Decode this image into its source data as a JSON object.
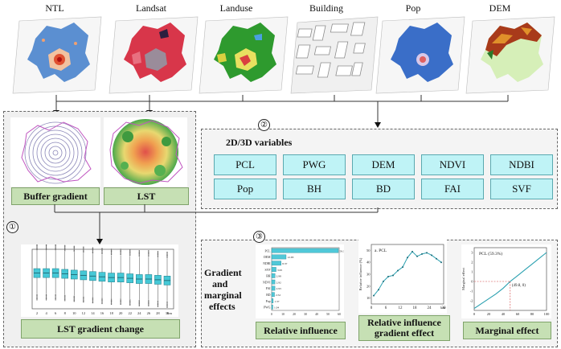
{
  "layers": [
    {
      "label": "NTL"
    },
    {
      "label": "Landsat"
    },
    {
      "label": "Landuse"
    },
    {
      "label": "Building"
    },
    {
      "label": "Pop"
    },
    {
      "label": "DEM"
    }
  ],
  "section1": {
    "number": "①",
    "buffer_label": "Buffer gradient",
    "lst_label": "LST",
    "change_label": "LST gradient change"
  },
  "section2": {
    "number": "②",
    "title": "2D/3D variables",
    "variables": [
      "PCL",
      "PWG",
      "DEM",
      "NDVI",
      "NDBI",
      "Pop",
      "BH",
      "BD",
      "FAI",
      "SVF"
    ]
  },
  "section3": {
    "number": "③",
    "side_label_lines": [
      "Gradient",
      "and",
      "marginal",
      "effects"
    ],
    "relative_influence_label": "Relative influence",
    "gradient_effect_label_lines": [
      "Relative influence",
      "gradient effect"
    ],
    "marginal_effect_label": "Marginal effect"
  },
  "boxplot_chart": {
    "type": "box",
    "x": [
      2,
      4,
      6,
      8,
      10,
      12,
      14,
      16,
      18,
      20,
      22,
      24,
      26,
      28,
      30
    ],
    "medians": [
      44,
      44,
      44,
      43.5,
      43,
      42.5,
      42,
      41.5,
      41,
      41,
      40.5,
      40,
      40,
      39.5,
      39
    ],
    "xlabel": "km",
    "ylim": [
      20,
      60
    ]
  },
  "ri_chart": {
    "type": "bar",
    "categories": [
      "PCL",
      "DEM",
      "NDBI",
      "SVF",
      "BH",
      "NDVI",
      "FAI",
      "BD",
      "Pop",
      "PWG"
    ],
    "values": [
      59.3,
      12.83,
      8.37,
      3.95,
      2.98,
      2.92,
      2.93,
      2.52,
      1.37,
      1.04
    ],
    "value_labels": [
      "59.3",
      "12.83",
      "8.37",
      "3.95",
      "2.98",
      "2.92",
      "2.93",
      "2.52",
      "1.37",
      "1.04"
    ],
    "xlim": [
      0,
      60
    ],
    "xticks": [
      "0",
      "10",
      "20",
      "30",
      "40",
      "50",
      "60"
    ]
  },
  "ri_gradient_chart": {
    "type": "line",
    "title": "a. PCL",
    "x": [
      1,
      3,
      5,
      7,
      9,
      11,
      13,
      15,
      17,
      19,
      21,
      23,
      25,
      27,
      29
    ],
    "y": [
      12,
      17,
      24,
      28,
      29,
      33,
      36,
      44,
      49,
      45,
      47,
      48,
      46,
      43,
      40
    ],
    "xticks": [
      0,
      6,
      12,
      18,
      24,
      30
    ],
    "yticks": [
      10,
      20,
      30,
      40,
      50
    ],
    "xlabel": "km",
    "ylabel": "Relative influence (%)",
    "xlim": [
      0,
      30
    ],
    "ylim": [
      5,
      55
    ]
  },
  "marginal_chart": {
    "type": "line",
    "title": "PCL (59.3%)",
    "annotation": "(49.8, 0)",
    "x": [
      0,
      10,
      20,
      30,
      40,
      49.8,
      60,
      70,
      80,
      90,
      100
    ],
    "y": [
      -2.8,
      -2.3,
      -1.8,
      -1.3,
      -0.7,
      0,
      0.6,
      1.2,
      1.8,
      2.4,
      3.0
    ],
    "xticks": [
      0,
      20,
      40,
      60,
      80,
      100
    ],
    "yticks": [
      -2,
      -1,
      0,
      1,
      2,
      3
    ],
    "ylabel": "Marginal effect",
    "xlim": [
      0,
      100
    ],
    "ylim": [
      -3,
      3.5
    ]
  }
}
